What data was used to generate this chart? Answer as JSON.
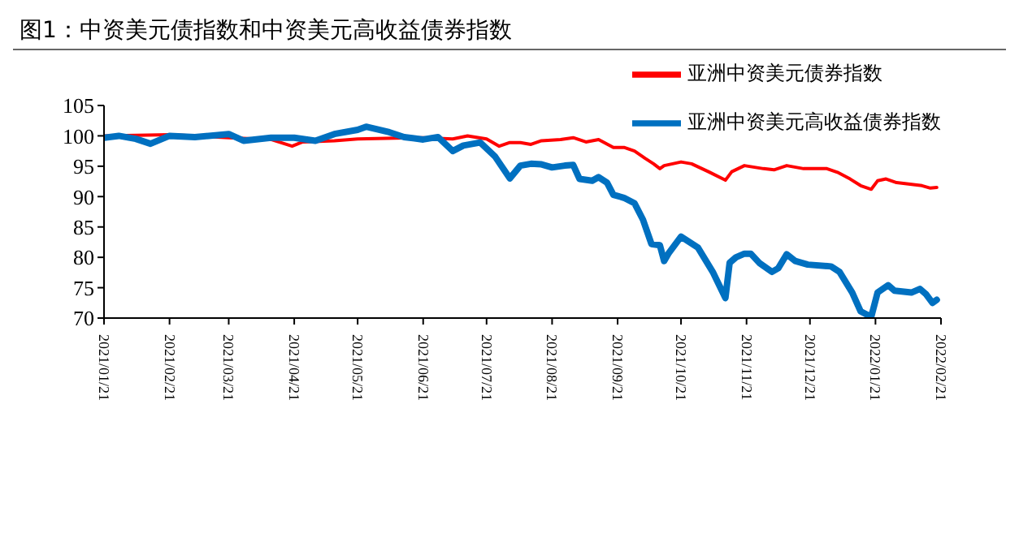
{
  "chart_data": {
    "type": "line",
    "title": "图1：中资美元债指数和中资美元高收益债券指数",
    "legend": "top right",
    "grid": false,
    "marker": "none",
    "line_style": "solid",
    "xlim": [
      "2021-01-21",
      "2022-02-21"
    ],
    "xticks": [
      {
        "value": "2021-01-21",
        "label": "2021/01/21"
      },
      {
        "value": "2021-02-21",
        "label": "2021/02/21"
      },
      {
        "value": "2021-03-21",
        "label": "2021/03/21"
      },
      {
        "value": "2021-04-21",
        "label": "2021/04/21"
      },
      {
        "value": "2021-05-21",
        "label": "2021/05/21"
      },
      {
        "value": "2021-06-21",
        "label": "2021/06/21"
      },
      {
        "value": "2021-07-21",
        "label": "2021/07/21"
      },
      {
        "value": "2021-08-21",
        "label": "2021/08/21"
      },
      {
        "value": "2021-09-21",
        "label": "2021/09/21"
      },
      {
        "value": "2021-10-21",
        "label": "2021/10/21"
      },
      {
        "value": "2021-11-21",
        "label": "2021/11/21"
      },
      {
        "value": "2021-12-21",
        "label": "2021/12/21"
      },
      {
        "value": "2022-01-21",
        "label": "2022/01/21"
      },
      {
        "value": "2022-02-21",
        "label": "2022/02/21"
      }
    ],
    "ylim": [
      70,
      105
    ],
    "yticks": [
      70,
      75,
      80,
      85,
      90,
      95,
      100,
      105
    ],
    "series": [
      {
        "name": "亚洲中资美元债券指数",
        "color": "#ff0000",
        "x": [
          "2021-01-21",
          "2021-02-21",
          "2021-03-21",
          "2021-04-10",
          "2021-04-20",
          "2021-04-25",
          "2021-05-10",
          "2021-05-21",
          "2021-06-21",
          "2021-07-05",
          "2021-07-12",
          "2021-07-21",
          "2021-07-27",
          "2021-08-01",
          "2021-08-06",
          "2021-08-11",
          "2021-08-16",
          "2021-08-25",
          "2021-08-31",
          "2021-09-06",
          "2021-09-12",
          "2021-09-19",
          "2021-09-24",
          "2021-09-29",
          "2021-10-04",
          "2021-10-08",
          "2021-10-11",
          "2021-10-13",
          "2021-10-21",
          "2021-10-26",
          "2021-11-03",
          "2021-11-11",
          "2021-11-14",
          "2021-11-20",
          "2021-11-29",
          "2021-12-04",
          "2021-12-10",
          "2021-12-18",
          "2021-12-29",
          "2022-01-03",
          "2022-01-09",
          "2022-01-14",
          "2022-01-19",
          "2022-01-22",
          "2022-01-26",
          "2022-01-31",
          "2022-02-12",
          "2022-02-16",
          "2022-02-19"
        ],
        "values": [
          100.0,
          100.2,
          99.7,
          99.4,
          98.3,
          99.0,
          99.2,
          99.5,
          99.7,
          99.5,
          100.0,
          99.5,
          98.3,
          98.9,
          98.9,
          98.6,
          99.2,
          99.4,
          99.7,
          99.0,
          99.4,
          98.1,
          98.1,
          97.5,
          96.3,
          95.4,
          94.6,
          95.1,
          95.7,
          95.4,
          94.1,
          92.7,
          94.1,
          95.1,
          94.6,
          94.4,
          95.1,
          94.6,
          94.6,
          94.0,
          92.9,
          91.8,
          91.2,
          92.6,
          92.9,
          92.3,
          91.8,
          91.4,
          91.5
        ]
      },
      {
        "name": "亚洲中资美元高收益债券指数",
        "color": "#0070c0",
        "x": [
          "2021-01-21",
          "2021-01-28",
          "2021-02-05",
          "2021-02-12",
          "2021-02-21",
          "2021-03-05",
          "2021-03-21",
          "2021-03-28",
          "2021-04-10",
          "2021-04-21",
          "2021-05-01",
          "2021-05-10",
          "2021-05-21",
          "2021-05-25",
          "2021-06-05",
          "2021-06-12",
          "2021-06-21",
          "2021-06-28",
          "2021-07-05",
          "2021-07-10",
          "2021-07-18",
          "2021-07-25",
          "2021-08-01",
          "2021-08-06",
          "2021-08-11",
          "2021-08-16",
          "2021-08-21",
          "2021-08-27",
          "2021-08-31",
          "2021-09-03",
          "2021-09-09",
          "2021-09-12",
          "2021-09-16",
          "2021-09-19",
          "2021-09-24",
          "2021-09-29",
          "2021-10-03",
          "2021-10-07",
          "2021-10-11",
          "2021-10-13",
          "2021-10-15",
          "2021-10-21",
          "2021-10-25",
          "2021-10-29",
          "2021-11-05",
          "2021-11-11",
          "2021-11-13",
          "2021-11-16",
          "2021-11-20",
          "2021-11-23",
          "2021-11-27",
          "2021-12-03",
          "2021-12-06",
          "2021-12-10",
          "2021-12-14",
          "2021-12-20",
          "2021-12-31",
          "2022-01-04",
          "2022-01-10",
          "2022-01-14",
          "2022-01-19",
          "2022-01-22",
          "2022-01-27",
          "2022-01-30",
          "2022-02-07",
          "2022-02-11",
          "2022-02-14",
          "2022-02-17",
          "2022-02-19"
        ],
        "values": [
          99.7,
          100.0,
          99.5,
          98.7,
          100.0,
          99.8,
          100.3,
          99.2,
          99.7,
          99.7,
          99.2,
          100.3,
          101.0,
          101.5,
          100.6,
          99.8,
          99.4,
          99.8,
          97.5,
          98.4,
          98.9,
          96.6,
          93.0,
          95.1,
          95.4,
          95.3,
          94.8,
          95.1,
          95.2,
          92.9,
          92.6,
          93.2,
          92.3,
          90.3,
          89.8,
          88.9,
          86.2,
          82.2,
          82.0,
          79.4,
          80.6,
          83.4,
          82.5,
          81.6,
          77.6,
          73.3,
          79.1,
          80.0,
          80.6,
          80.6,
          79.1,
          77.6,
          78.2,
          80.5,
          79.4,
          78.8,
          78.5,
          77.6,
          74.2,
          71.1,
          70.2,
          74.2,
          75.4,
          74.5,
          74.2,
          74.8,
          73.9,
          72.5,
          73.0
        ]
      }
    ]
  }
}
